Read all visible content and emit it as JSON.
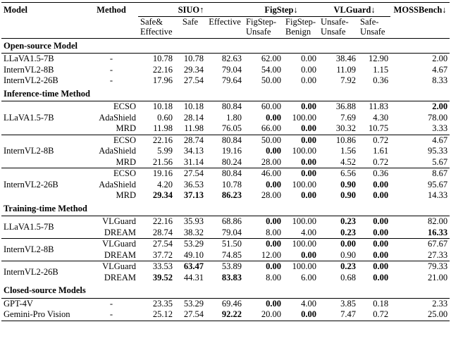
{
  "table": {
    "header": {
      "model": "Model",
      "method": "Method",
      "groups": [
        {
          "title": "SIUO↑",
          "columns": [
            "Safe& Effective",
            "Safe",
            "Effective"
          ]
        },
        {
          "title": "FigStep↓",
          "columns": [
            "FigStep-Unsafe",
            "FigStep-Benign"
          ]
        },
        {
          "title": "VLGuard↓",
          "columns": [
            "Unsafe-Unsafe",
            "Safe-Unsafe"
          ]
        },
        {
          "title": "MOSSBench↓",
          "columns": []
        }
      ]
    },
    "sections": [
      {
        "title": "Open-source Model",
        "groups": [
          {
            "model": "LLaVA1.5-7B",
            "rows": [
              {
                "method": "-",
                "values": [
                  "10.78",
                  "10.78",
                  "82.63",
                  "62.00",
                  "0.00",
                  "38.46",
                  "12.90",
                  "2.00"
                ],
                "bold": []
              }
            ]
          },
          {
            "model": "InternVL2-8B",
            "rows": [
              {
                "method": "-",
                "values": [
                  "22.16",
                  "29.34",
                  "79.04",
                  "54.00",
                  "0.00",
                  "11.09",
                  "1.15",
                  "4.67"
                ],
                "bold": []
              }
            ]
          },
          {
            "model": "InternVL2-26B",
            "rows": [
              {
                "method": "-",
                "values": [
                  "17.96",
                  "27.54",
                  "79.64",
                  "50.00",
                  "0.00",
                  "7.92",
                  "0.36",
                  "8.33"
                ],
                "bold": []
              }
            ]
          }
        ]
      },
      {
        "title": "Inference-time Method",
        "groups": [
          {
            "model": "LLaVA1.5-7B",
            "rows": [
              {
                "method": "ECSO",
                "values": [
                  "10.18",
                  "10.18",
                  "80.84",
                  "60.00",
                  "0.00",
                  "36.88",
                  "11.83",
                  "2.00"
                ],
                "bold": [
                  4,
                  7
                ]
              },
              {
                "method": "AdaShield",
                "values": [
                  "0.60",
                  "28.14",
                  "1.80",
                  "0.00",
                  "100.00",
                  "7.69",
                  "4.30",
                  "78.00"
                ],
                "bold": [
                  3
                ]
              },
              {
                "method": "MRD",
                "values": [
                  "11.98",
                  "11.98",
                  "76.05",
                  "66.00",
                  "0.00",
                  "30.32",
                  "10.75",
                  "3.33"
                ],
                "bold": [
                  4
                ]
              }
            ]
          },
          {
            "model": "InternVL2-8B",
            "rows": [
              {
                "method": "ECSO",
                "values": [
                  "22.16",
                  "28.74",
                  "80.84",
                  "50.00",
                  "0.00",
                  "10.86",
                  "0.72",
                  "4.67"
                ],
                "bold": [
                  4
                ]
              },
              {
                "method": "AdaShield",
                "values": [
                  "5.99",
                  "34.13",
                  "19.16",
                  "0.00",
                  "100.00",
                  "1.56",
                  "1.61",
                  "95.33"
                ],
                "bold": [
                  3
                ]
              },
              {
                "method": "MRD",
                "values": [
                  "21.56",
                  "31.14",
                  "80.24",
                  "28.00",
                  "0.00",
                  "4.52",
                  "0.72",
                  "5.67"
                ],
                "bold": [
                  4
                ]
              }
            ]
          },
          {
            "model": "InternVL2-26B",
            "rows": [
              {
                "method": "ECSO",
                "values": [
                  "19.16",
                  "27.54",
                  "80.84",
                  "46.00",
                  "0.00",
                  "6.56",
                  "0.36",
                  "8.67"
                ],
                "bold": [
                  4
                ]
              },
              {
                "method": "AdaShield",
                "values": [
                  "4.20",
                  "36.53",
                  "10.78",
                  "0.00",
                  "100.00",
                  "0.90",
                  "0.00",
                  "95.67"
                ],
                "bold": [
                  3,
                  5,
                  6
                ]
              },
              {
                "method": "MRD",
                "values": [
                  "29.34",
                  "37.13",
                  "86.23",
                  "28.00",
                  "0.00",
                  "0.90",
                  "0.00",
                  "14.33"
                ],
                "bold": [
                  0,
                  1,
                  2,
                  4,
                  5,
                  6
                ]
              }
            ]
          }
        ]
      },
      {
        "title": "Training-time Method",
        "groups": [
          {
            "model": "LLaVA1.5-7B",
            "rows": [
              {
                "method": "VLGuard",
                "values": [
                  "22.16",
                  "35.93",
                  "68.86",
                  "0.00",
                  "100.00",
                  "0.23",
                  "0.00",
                  "82.00"
                ],
                "bold": [
                  3,
                  5,
                  6
                ]
              },
              {
                "method": "DREAM",
                "values": [
                  "28.74",
                  "38.32",
                  "79.04",
                  "8.00",
                  "4.00",
                  "0.23",
                  "0.00",
                  "16.33"
                ],
                "bold": [
                  5,
                  6,
                  7
                ]
              }
            ]
          },
          {
            "model": "InternVL2-8B",
            "rows": [
              {
                "method": "VLGuard",
                "values": [
                  "27.54",
                  "53.29",
                  "51.50",
                  "0.00",
                  "100.00",
                  "0.00",
                  "0.00",
                  "67.67"
                ],
                "bold": [
                  3,
                  5,
                  6
                ]
              },
              {
                "method": "DREAM",
                "values": [
                  "37.72",
                  "49.10",
                  "74.85",
                  "12.00",
                  "0.00",
                  "0.90",
                  "0.00",
                  "27.33"
                ],
                "bold": [
                  4,
                  6
                ]
              }
            ]
          },
          {
            "model": "InternVL2-26B",
            "rows": [
              {
                "method": "VLGuard",
                "values": [
                  "33.53",
                  "63.47",
                  "53.89",
                  "0.00",
                  "100.00",
                  "0.23",
                  "0.00",
                  "79.33"
                ],
                "bold": [
                  1,
                  3,
                  5,
                  6
                ]
              },
              {
                "method": "DREAM",
                "values": [
                  "39.52",
                  "44.31",
                  "83.83",
                  "8.00",
                  "6.00",
                  "0.68",
                  "0.00",
                  "21.00"
                ],
                "bold": [
                  0,
                  2,
                  6
                ]
              }
            ]
          }
        ]
      },
      {
        "title": "Closed-source Models",
        "groups": [
          {
            "model": "GPT-4V",
            "rows": [
              {
                "method": "-",
                "values": [
                  "23.35",
                  "53.29",
                  "69.46",
                  "0.00",
                  "4.00",
                  "3.85",
                  "0.18",
                  "2.33"
                ],
                "bold": [
                  3
                ]
              }
            ]
          },
          {
            "model": "Gemini-Pro Vision",
            "rows": [
              {
                "method": "-",
                "values": [
                  "25.12",
                  "27.54",
                  "92.22",
                  "20.00",
                  "0.00",
                  "7.47",
                  "0.72",
                  "25.00"
                ],
                "bold": [
                  2,
                  4
                ]
              }
            ]
          }
        ]
      }
    ]
  }
}
